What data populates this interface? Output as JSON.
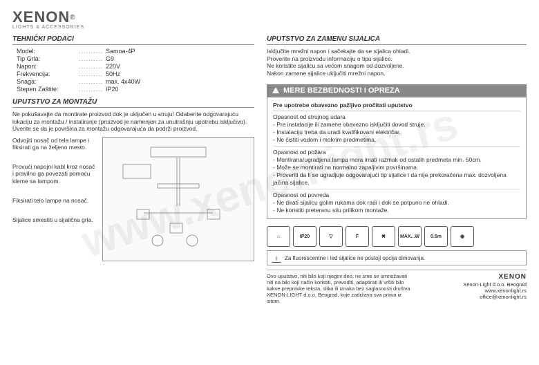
{
  "logo": {
    "brand": "XENON",
    "sub": "LIGHTS & ACCESSORIES",
    "reg": "®"
  },
  "watermark": "www.xenonlight.rs",
  "tech": {
    "title": "TEHNIČKI PODACI",
    "rows": [
      {
        "label": "Model:",
        "value": "Samoa-4P"
      },
      {
        "label": "Tip Grla:",
        "value": "G9"
      },
      {
        "label": "Napon:",
        "value": "220V"
      },
      {
        "label": "Frekvencija:",
        "value": "50Hz"
      },
      {
        "label": "Snaga:",
        "value": "max. 4x40W"
      },
      {
        "label": "Stepen Zaštite:",
        "value": "IP20"
      }
    ]
  },
  "mount": {
    "title": "UPUTSTVO ZA MONTAŽU",
    "intro": "Ne pokušavajte da montirate proizvod dok je uključen u struju! Odaberite odgovarajuću lokaciju za montažu / instaliranje (proizvod je namenjen za unutrašnju upotrebu isključivo). Uverite se da je površina za montažu odgovarajuća da podrži proizvod.",
    "steps": [
      "Odvojiti nosač od tela lampe i fiksirati ga na željeno mesto.",
      "Provući napojni kabl kroz nosač i pravilno ga povezati pomoću kleme sa lampom.",
      "Fiksirati telo lampe na nosač.",
      "Sijalice smestiti u sijalična grla."
    ]
  },
  "replace": {
    "title": "UPUTSTVO ZA ZAMENU SIJALICA",
    "lines": [
      "Isključite mrežni napon i sačekajte da se sijalica ohladi.",
      "Proverite na proizvodu informaciju o tipu sijalice.",
      "Ne koristite sijalicu sa većom snagom od dozvoljene.",
      "Nakon zamene sijalice uključiti mrežni napon."
    ]
  },
  "safety": {
    "header": "MERE BEZBEDNOSTI I OPREZA",
    "sub": "Pre upotrebe obavezno pažljivo pročitati uputstvo",
    "groups": [
      {
        "title": "Opasnost od strujnog udara",
        "items": [
          "- Pre instalacije ili zamene obavezno isključiti dovod struje.",
          "- Instalaciju treba da uradi kvalifikovani električar.",
          "- Ne čistiti vodom i mokrim predmetima."
        ]
      },
      {
        "title": "Opasnost od požara",
        "items": [
          "- Montirana/ugradjena lampa mora imati razmak od ostalih predmeta min. 50cm.",
          "- Može se montirati na normalno zapaljivim površinama.",
          "- Proveriti da li se ugradjuje odgovarajući tip sijalice i da nije prekoračena max. dozvoljena jačina sijalice."
        ]
      },
      {
        "title": "Opasnost od povreda",
        "items": [
          "- Ne dirati sijalicu golim rukama dok radi i dok se potpuno ne ohladi.",
          "- Ne koristiti preteranu silu prilikom montaže."
        ]
      }
    ]
  },
  "icons": [
    "⌂",
    "IP20",
    "▽",
    "F",
    "✖",
    "MAX...W",
    "0.5m",
    "◉"
  ],
  "dimNote": "Za fluorescentne i led sijalice ne postoji opcija dimovanja.",
  "footer": {
    "left": "Ovo uputstvo, niti bilo koji njegov deo, ne sme se umnožavati niti na bilo koji način koristiti, prevoditi, adaptirati ili vršiti bilo kakve prepravke teksta, slika ili iznaka bez saglasnosti društva XENON-LIGHT d.o.o. Beograd, koje zadržava sva prava iz istom.",
    "brand": "XENON",
    "company": "Xenon-Light d.o.o. Beograd",
    "web": "www.xenonlight.rs",
    "email": "office@xenonlight.rs"
  }
}
